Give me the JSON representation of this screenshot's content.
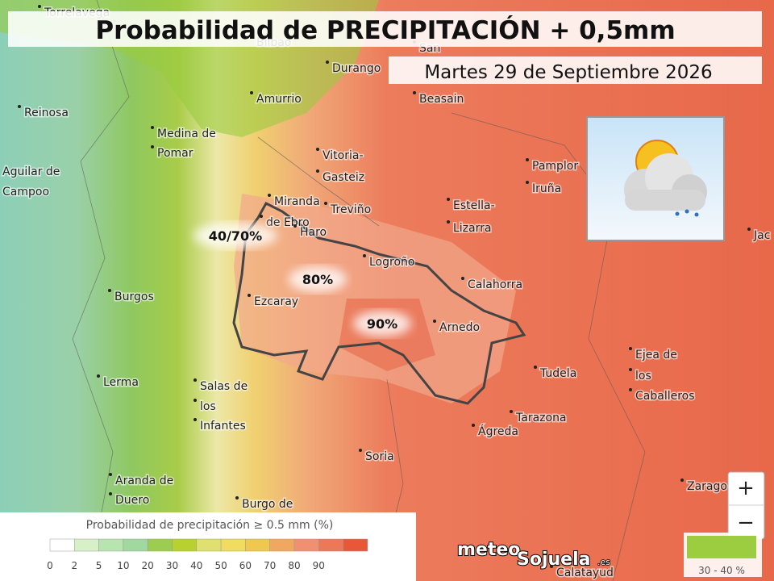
{
  "header": {
    "title": "Probabilidad de PRECIPITACIÓN + 0,5mm",
    "date": "Martes 29 de Septiembre 2026"
  },
  "annotations": [
    "40/70%",
    "80%",
    "90%"
  ],
  "places": [
    "Torrelavega",
    "Bilbao",
    "San",
    "Durango",
    "Amurrio",
    "Beasain",
    "Reinosa",
    "Medina de",
    "Pomar",
    "Vitoria-",
    "Gasteiz",
    "Pamplor",
    "Iruña",
    "Aguilar de",
    "Campoo",
    "Treviño",
    "Miranda",
    "de Ebro",
    "Estella-",
    "Lizarra",
    "Haro",
    "Jac",
    "Logroño",
    "Burgos",
    "Ezcaray",
    "Calahorra",
    "Arnedo",
    "Ejea de",
    "los",
    "Caballeros",
    "Tudela",
    "Lerma",
    "Salas de",
    "los",
    "Infantes",
    "Tarazona",
    "Ágreda",
    "Soria",
    "Aranda de",
    "Duero",
    "Zarago",
    "Burgo de",
    "Calatayud"
  ],
  "legend": {
    "title": "Probabilidad de precipitación ≥ 0.5 mm (%)",
    "labels": [
      "0",
      "2",
      "5",
      "10",
      "20",
      "30",
      "40",
      "50",
      "60",
      "70",
      "80",
      "90"
    ],
    "colors": [
      "#ffffff",
      "#d8f0c8",
      "#b8e4b0",
      "#a0d8a0",
      "#9ccc50",
      "#b8d030",
      "#e0e070",
      "#f0dc60",
      "#f0c850",
      "#f0a860",
      "#f09070",
      "#ec7858",
      "#e85838"
    ]
  },
  "zoom": {
    "in": "+",
    "out": "−"
  },
  "logo": {
    "left": "meteo",
    "right": "Sojuela",
    "suffix": ".es"
  },
  "scale_badge": "30 - 40 %"
}
